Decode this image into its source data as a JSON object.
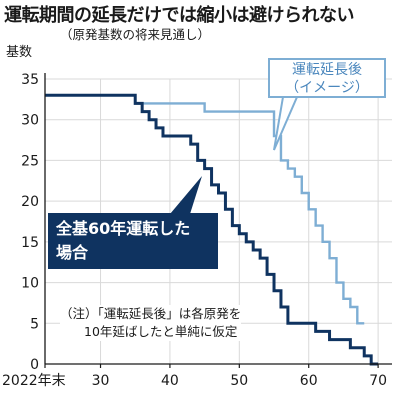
{
  "title": "運転期間の延長だけでは縮小は避けられない",
  "subtitle": "（原発基数の将来見通し）",
  "annotations": {
    "extended_line1": "運転延長後",
    "extended_line2": "（イメージ）",
    "base_line1": "全基60年運転した",
    "base_line2": "場合",
    "note_line1": "（注）「運転延長後」は各原発を",
    "note_line2": "10年延ばしたと単純に仮定"
  },
  "colors": {
    "extended": "#7eaed4",
    "base": "#0f3360",
    "axis": "#1a1a1a",
    "grid": "#d9d9d9"
  },
  "chart_data": {
    "type": "line",
    "title": "運転期間の延長だけでは縮小は避けられない",
    "subtitle": "（原発基数の将来見通し）",
    "ylabel": "基数",
    "xlabel": "",
    "xlim": [
      2022,
      2072
    ],
    "ylim": [
      0,
      35
    ],
    "x_ticks": [
      {
        "value": 2022,
        "label": "2022年末"
      },
      {
        "value": 2030,
        "label": "30"
      },
      {
        "value": 2040,
        "label": "40"
      },
      {
        "value": 2050,
        "label": "50"
      },
      {
        "value": 2060,
        "label": "60"
      },
      {
        "value": 2070,
        "label": "70"
      }
    ],
    "y_ticks": [
      0,
      5,
      10,
      15,
      20,
      25,
      30,
      35
    ],
    "grid": true,
    "step": true,
    "series": [
      {
        "name": "運転延長後（イメージ）",
        "x": [
          2022,
          2034,
          2035,
          2044,
          2045,
          2054,
          2055,
          2056,
          2057,
          2058,
          2059,
          2060,
          2061,
          2062,
          2063,
          2064,
          2065,
          2066,
          2067,
          2068
        ],
        "y": [
          33,
          33,
          32,
          32,
          31,
          31,
          28,
          25,
          24,
          23,
          21,
          19,
          17,
          15,
          13,
          10,
          8,
          7,
          5,
          5
        ]
      },
      {
        "name": "全基60年運転した場合",
        "x": [
          2022,
          2034,
          2035,
          2036,
          2037,
          2038,
          2039,
          2040,
          2042,
          2043,
          2044,
          2045,
          2046,
          2047,
          2048,
          2049,
          2050,
          2051,
          2052,
          2053,
          2054,
          2055,
          2056,
          2057,
          2060,
          2061,
          2062,
          2063,
          2064,
          2065,
          2066,
          2067,
          2068,
          2069,
          2070
        ],
        "y": [
          33,
          33,
          32,
          31,
          30,
          29,
          28,
          28,
          28,
          27,
          25,
          24,
          22,
          21,
          19,
          17,
          16,
          15,
          14,
          13,
          11,
          9,
          7,
          5,
          5,
          4,
          4,
          3,
          3,
          3,
          2,
          2,
          1,
          0,
          0
        ]
      }
    ]
  }
}
